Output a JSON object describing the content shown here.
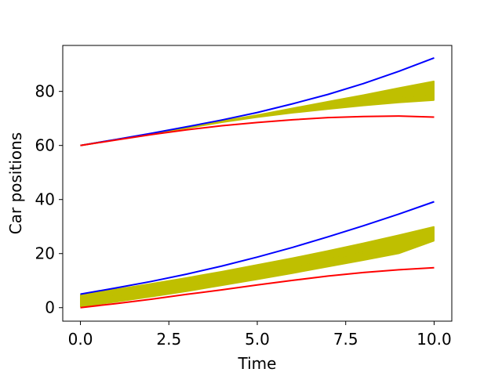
{
  "chart_data": {
    "type": "line",
    "title": "",
    "xlabel": "Time",
    "ylabel": "Car positions",
    "xlim": [
      -0.5,
      10.5
    ],
    "ylim": [
      -5,
      97
    ],
    "xticks": [
      0,
      2.5,
      5,
      7.5,
      10
    ],
    "xtick_labels": [
      "0.0",
      "2.5",
      "5.0",
      "7.5",
      "10.0"
    ],
    "yticks": [
      0,
      20,
      40,
      60,
      80
    ],
    "ytick_labels": [
      "0",
      "20",
      "40",
      "60",
      "80"
    ],
    "grid": false,
    "legend": "none",
    "colors": {
      "upper": "#0000ff",
      "lower": "#ff0000",
      "band": "#bfbf00"
    },
    "x": [
      0,
      1,
      2,
      3,
      4,
      5,
      6,
      7,
      8,
      9,
      10
    ],
    "series": [
      {
        "color": "#0000ff",
        "values": [
          60,
          62.2,
          64.5,
          66.9,
          69.4,
          72.2,
          75.4,
          78.9,
          82.9,
          87.4,
          92.4
        ]
      },
      {
        "color": "#ff0000",
        "values": [
          60,
          62,
          64,
          65.8,
          67.3,
          68.5,
          69.5,
          70.3,
          70.7,
          70.9,
          70.5
        ]
      },
      {
        "color": "#bfbf00",
        "values": [
          60,
          62.1,
          64.4,
          66.7,
          69.0,
          71.2,
          73.7,
          76.2,
          78.6,
          81.2,
          83.7
        ]
      },
      {
        "color": "#bfbf00",
        "values": [
          60,
          62.1,
          64.3,
          66.5,
          68.8,
          70.9,
          72.8,
          74.5,
          76.1,
          77.6,
          79.2
        ]
      },
      {
        "color": "#bfbf00",
        "values": [
          60,
          62.1,
          64.3,
          66.4,
          68.6,
          70.5,
          72.1,
          73.5,
          74.8,
          75.9,
          76.8
        ]
      },
      {
        "color": "#0000ff",
        "values": [
          5,
          7.3,
          9.7,
          12.4,
          15.4,
          18.7,
          22.3,
          26.2,
          30.3,
          34.6,
          39.2
        ]
      },
      {
        "color": "#ff0000",
        "values": [
          0,
          1.5,
          3.1,
          4.9,
          6.6,
          8.4,
          10.1,
          11.7,
          13.0,
          14.0,
          14.8
        ]
      },
      {
        "color": "#bfbf00",
        "values": [
          4.8,
          6.7,
          8.8,
          11.0,
          13.3,
          15.8,
          18.3,
          21.0,
          23.8,
          26.8,
          29.9
        ]
      },
      {
        "color": "#bfbf00",
        "values": [
          2.5,
          4.4,
          6.5,
          8.6,
          10.8,
          13.1,
          15.5,
          17.9,
          20.3,
          22.8,
          25.5
        ]
      },
      {
        "color": "#bfbf00",
        "values": [
          0.4,
          2.2,
          4.1,
          6.1,
          8.3,
          10.5,
          12.8,
          15.2,
          17.6,
          20.1,
          24.8
        ]
      }
    ]
  }
}
